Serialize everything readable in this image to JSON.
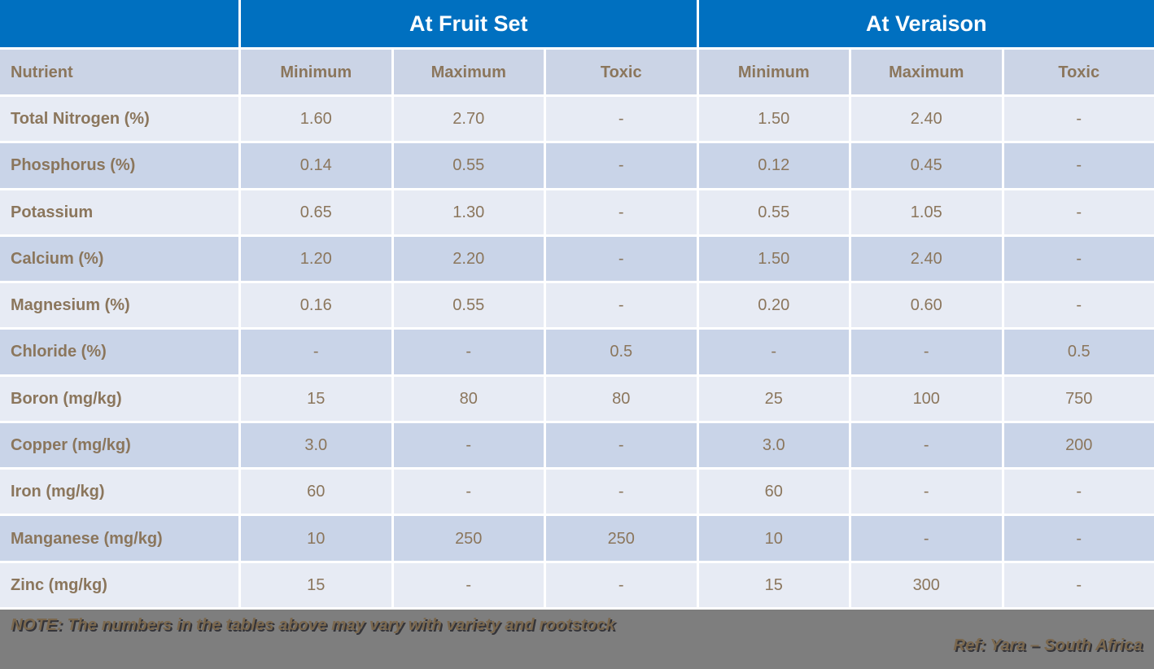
{
  "table": {
    "group_headers": [
      {
        "label": ""
      },
      {
        "label": "At Fruit Set"
      },
      {
        "label": "At Veraison"
      }
    ],
    "columns": [
      "Nutrient",
      "Minimum",
      "Maximum",
      "Toxic",
      "Minimum",
      "Maximum",
      "Toxic"
    ],
    "rows": [
      {
        "nutrient": "Total Nitrogen (%)",
        "values": [
          "1.60",
          "2.70",
          "-",
          "1.50",
          "2.40",
          "-"
        ]
      },
      {
        "nutrient": "Phosphorus (%)",
        "values": [
          "0.14",
          "0.55",
          "-",
          "0.12",
          "0.45",
          "-"
        ]
      },
      {
        "nutrient": "Potassium",
        "values": [
          "0.65",
          "1.30",
          "-",
          "0.55",
          "1.05",
          "-"
        ]
      },
      {
        "nutrient": "Calcium (%)",
        "values": [
          "1.20",
          "2.20",
          "-",
          "1.50",
          "2.40",
          "-"
        ]
      },
      {
        "nutrient": "Magnesium (%)",
        "values": [
          "0.16",
          "0.55",
          "-",
          "0.20",
          "0.60",
          "-"
        ]
      },
      {
        "nutrient": "Chloride (%)",
        "values": [
          "-",
          "-",
          "0.5",
          "-",
          "-",
          "0.5"
        ]
      },
      {
        "nutrient": "Boron (mg/kg)",
        "values": [
          "15",
          "80",
          "80",
          "25",
          "100",
          "750"
        ]
      },
      {
        "nutrient": "Copper (mg/kg)",
        "values": [
          "3.0",
          "-",
          "-",
          "3.0",
          "-",
          "200"
        ]
      },
      {
        "nutrient": "Iron (mg/kg)",
        "values": [
          "60",
          "-",
          "-",
          "60",
          "-",
          "-"
        ]
      },
      {
        "nutrient": "Manganese (mg/kg)",
        "values": [
          "10",
          "250",
          "250",
          "10",
          "-",
          "-"
        ]
      },
      {
        "nutrient": "Zinc (mg/kg)",
        "values": [
          "15",
          "-",
          "-",
          "15",
          "300",
          "-"
        ]
      }
    ]
  },
  "footer": {
    "note": "NOTE: The numbers in the tables above may vary with variety and rootstock",
    "ref": "Ref: Yara – South Africa"
  },
  "colors": {
    "header_blue": "#0070C0",
    "column_header_bg": "#CBD4E6",
    "row_light_bg": "#E7EBF4",
    "row_dark_bg": "#C9D4E8",
    "table_text": "#8B765C",
    "footer_bg": "#7E7E7E",
    "footer_text": "#7B684E"
  },
  "chart_data": {
    "type": "table",
    "title": "",
    "group_headers": [
      "",
      "At Fruit Set",
      "At Veraison"
    ],
    "columns": [
      "Nutrient",
      "Minimum",
      "Maximum",
      "Toxic",
      "Minimum",
      "Maximum",
      "Toxic"
    ],
    "rows": [
      [
        "Total Nitrogen (%)",
        "1.60",
        "2.70",
        "-",
        "1.50",
        "2.40",
        "-"
      ],
      [
        "Phosphorus (%)",
        "0.14",
        "0.55",
        "-",
        "0.12",
        "0.45",
        "-"
      ],
      [
        "Potassium",
        "0.65",
        "1.30",
        "-",
        "0.55",
        "1.05",
        "-"
      ],
      [
        "Calcium (%)",
        "1.20",
        "2.20",
        "-",
        "1.50",
        "2.40",
        "-"
      ],
      [
        "Magnesium (%)",
        "0.16",
        "0.55",
        "-",
        "0.20",
        "0.60",
        "-"
      ],
      [
        "Chloride (%)",
        "-",
        "-",
        "0.5",
        "-",
        "-",
        "0.5"
      ],
      [
        "Boron (mg/kg)",
        "15",
        "80",
        "80",
        "25",
        "100",
        "750"
      ],
      [
        "Copper (mg/kg)",
        "3.0",
        "-",
        "-",
        "3.0",
        "-",
        "200"
      ],
      [
        "Iron (mg/kg)",
        "60",
        "-",
        "-",
        "60",
        "-",
        "-"
      ],
      [
        "Manganese (mg/kg)",
        "10",
        "250",
        "250",
        "10",
        "-",
        "-"
      ],
      [
        "Zinc (mg/kg)",
        "15",
        "-",
        "-",
        "15",
        "300",
        "-"
      ]
    ]
  }
}
